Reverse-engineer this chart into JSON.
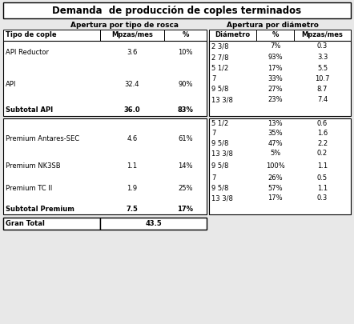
{
  "title": "Demanda  de producción de coples terminados",
  "header_left": "Apertura por tipo de rosca",
  "header_right": "Apertura por diámetro",
  "col_headers_left": [
    "Tipo de cople",
    "Mpzas/mes",
    "%"
  ],
  "col_headers_right": [
    "Diámetro",
    "%",
    "Mpzas/mes"
  ],
  "grand_total_label": "Gran Total",
  "grand_total_value": "43.5",
  "bg_color": "#e8e8e8",
  "box_fill": "white",
  "font_size": 6.0,
  "title_font_size": 8.5
}
